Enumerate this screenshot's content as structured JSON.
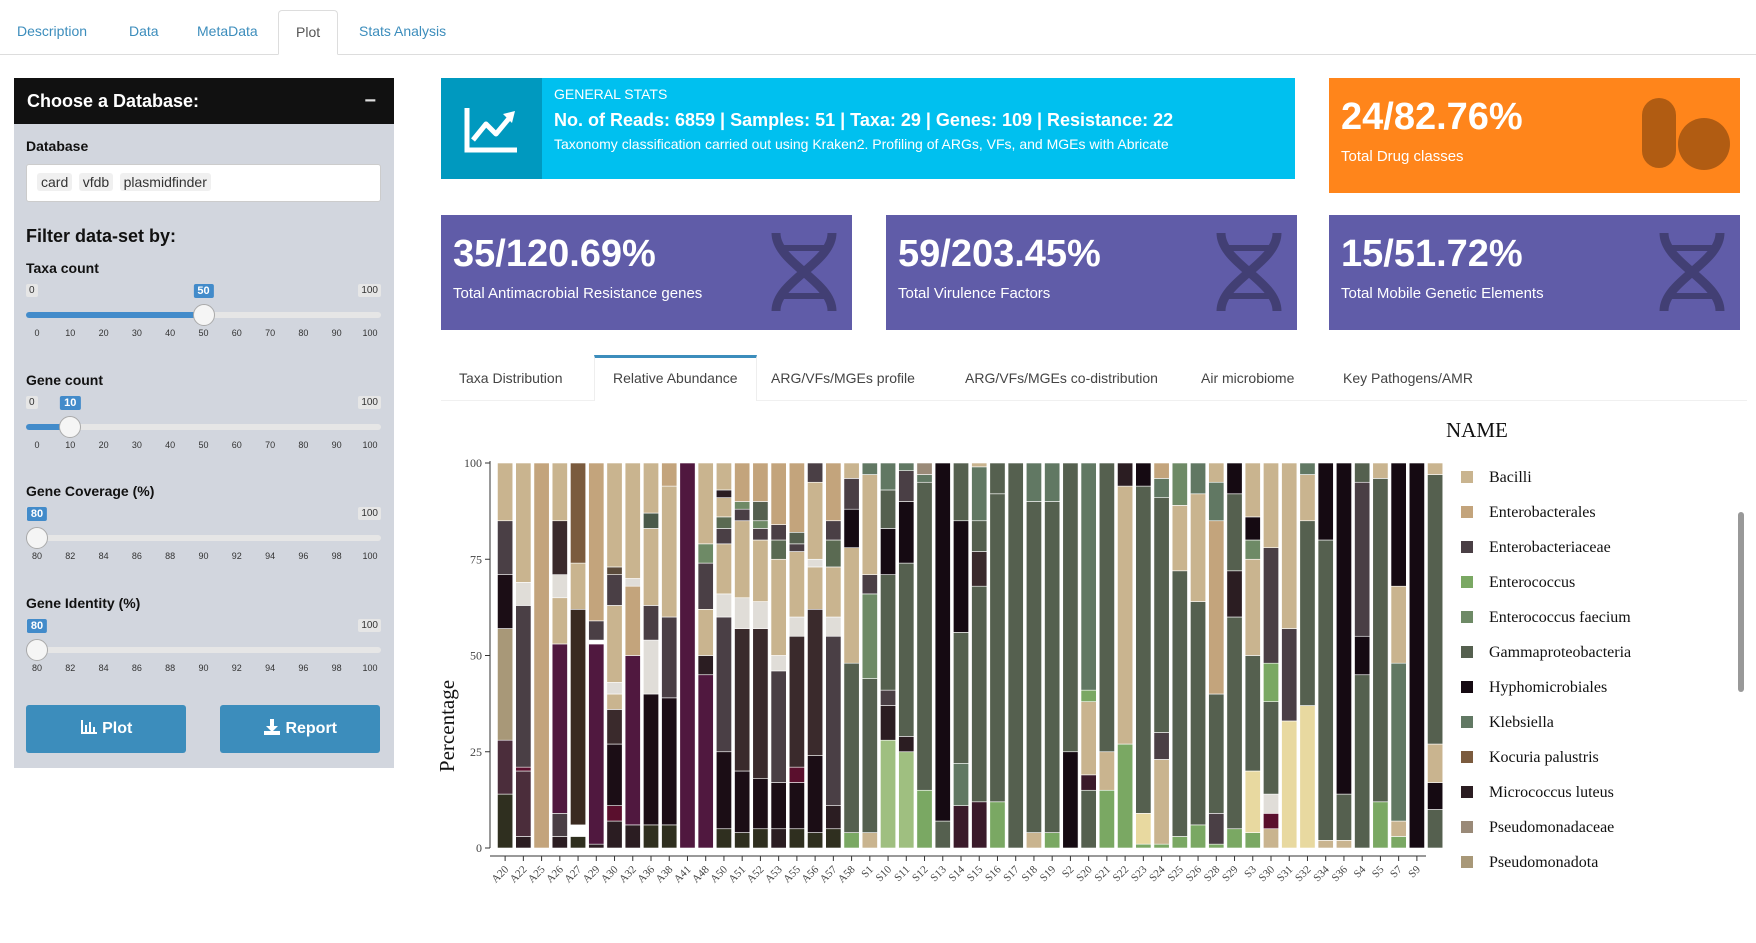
{
  "tabs": [
    "Description",
    "Data",
    "MetaData",
    "Plot",
    "Stats Analysis"
  ],
  "active_tab": "Plot",
  "sidebar": {
    "title": "Choose a Database:",
    "minimize": "−",
    "db_label": "Database",
    "db_chips": [
      "card",
      "vfdb",
      "plasmidfinder"
    ],
    "filter_title": "Filter data-set by:",
    "sliders": [
      {
        "label": "Taxa count",
        "min": "0",
        "max": "100",
        "value": "50",
        "fraction": 0.5,
        "ticks": [
          "0",
          "10",
          "20",
          "30",
          "40",
          "50",
          "60",
          "70",
          "80",
          "90",
          "100"
        ]
      },
      {
        "label": "Gene count",
        "min": "0",
        "max": "100",
        "value": "10",
        "fraction": 0.1,
        "ticks": [
          "0",
          "10",
          "20",
          "30",
          "40",
          "50",
          "60",
          "70",
          "80",
          "90",
          "100"
        ]
      },
      {
        "label": "Gene Coverage (%)",
        "min": "80",
        "max": "100",
        "value": "80",
        "fraction": 0.0,
        "ticks": [
          "80",
          "82",
          "84",
          "86",
          "88",
          "90",
          "92",
          "94",
          "96",
          "98",
          "100"
        ]
      },
      {
        "label": "Gene Identity (%)",
        "min": "80",
        "max": "100",
        "value": "80",
        "fraction": 0.0,
        "ticks": [
          "80",
          "82",
          "84",
          "86",
          "88",
          "90",
          "92",
          "94",
          "96",
          "98",
          "100"
        ]
      }
    ],
    "plot_button": "Plot",
    "report_button": "Report"
  },
  "general_stats": {
    "label": "GENERAL STATS",
    "headline": "No. of Reads: 6859 | Samples: 51 | Taxa: 29 | Genes: 109 | Resistance: 22",
    "note": "Taxonomy classification carried out using Kraken2. Profiling of ARGs, VFs, and MGEs with Abricate"
  },
  "drug": {
    "value": "24/82.76%",
    "caption": "Total Drug classes"
  },
  "value_boxes": [
    {
      "value": "35/120.69%",
      "caption": "Total Antimacrobial Resistance genes"
    },
    {
      "value": "59/203.45%",
      "caption": "Total Virulence Factors"
    },
    {
      "value": "15/51.72%",
      "caption": "Total Mobile Genetic Elements"
    }
  ],
  "content_tabs": [
    "Taxa Distribution",
    "Relative Abundance",
    "ARG/VFs/MGEs profile",
    "ARG/VFs/MGEs co-distribution",
    "Air microbiome",
    "Key Pathogens/AMR"
  ],
  "active_content_tab": "Relative Abundance",
  "colors": {
    "accent": "#3c8dbc",
    "info": "#00c0ef",
    "orange": "#ff851b",
    "purple": "#605ca8"
  },
  "chart_data": {
    "type": "bar",
    "stacked": true,
    "ylabel": "Percentage",
    "ylim": [
      0,
      100
    ],
    "yticks": [
      0,
      25,
      50,
      75,
      100
    ],
    "legend_title": "NAME",
    "legend_position": "right",
    "categories": [
      "A20",
      "A22",
      "A25",
      "A26",
      "A27",
      "A29",
      "A30",
      "A32",
      "A36",
      "A38",
      "A41",
      "A48",
      "A50",
      "A51",
      "A52",
      "A53",
      "A55",
      "A56",
      "A57",
      "A58",
      "S1",
      "S10",
      "S11",
      "S12",
      "S13",
      "S14",
      "S15",
      "S16",
      "S17",
      "S18",
      "S19",
      "S2",
      "S20",
      "S21",
      "S22",
      "S23",
      "S24",
      "S25",
      "S26",
      "S28",
      "S29",
      "S3",
      "S30",
      "S31",
      "S32",
      "S34",
      "S36",
      "S4",
      "S5",
      "S7",
      "S9"
    ],
    "series": [
      {
        "name": "Bacilli",
        "color": "#c9b48f"
      },
      {
        "name": "Enterobacterales",
        "color": "#c3a47c"
      },
      {
        "name": "Enterobacteriaceae",
        "color": "#4a3f45"
      },
      {
        "name": "Enterococcus",
        "color": "#7aa863"
      },
      {
        "name": "Enterococcus faecium",
        "color": "#6e8a66"
      },
      {
        "name": "Gammaproteobacteria",
        "color": "#55604f"
      },
      {
        "name": "Hyphomicrobiales",
        "color": "#150a12"
      },
      {
        "name": "Klebsiella",
        "color": "#617863"
      },
      {
        "name": "Kocuria palustris",
        "color": "#7b5b3e"
      },
      {
        "name": "Micrococcus luteus",
        "color": "#2b1d22"
      },
      {
        "name": "Pseudomonadaceae",
        "color": "#9a8a78"
      },
      {
        "name": "Pseudomonadota",
        "color": "#a89878"
      }
    ],
    "stacks": [
      [
        [
          "#2f2f1f",
          14
        ],
        [
          "#4b2d3b",
          14
        ],
        [
          "#a89878",
          29
        ],
        [
          "#1b0d15",
          14
        ],
        [
          "#4a3f45",
          14
        ],
        [
          "#c9b48f",
          15
        ]
      ],
      [
        [
          "#2b1d22",
          3
        ],
        [
          "#4b2d3b",
          17
        ],
        [
          "#5a0f2d",
          1
        ],
        [
          "#4a3f45",
          42
        ],
        [
          "#e0ddd8",
          6
        ],
        [
          "#c9b48f",
          31
        ]
      ],
      [
        [
          "#c3a47c",
          100
        ]
      ],
      [
        [
          "#2b1d22",
          3
        ],
        [
          "#4a3f45",
          6
        ],
        [
          "#50183f",
          44
        ],
        [
          "#c9b48f",
          12
        ],
        [
          "#e0ddd8",
          6
        ],
        [
          "#3a2a2c",
          14
        ],
        [
          "#c9b48f",
          15
        ]
      ],
      [
        [
          "#2f2f1f",
          3
        ],
        [
          "#ffffff",
          3
        ],
        [
          "#3a2a20",
          56
        ],
        [
          "#c9b48f",
          12
        ],
        [
          "#7b5b3e",
          26
        ]
      ],
      [
        [
          "#2b1d22",
          1
        ],
        [
          "#50183f",
          52
        ],
        [
          "#ffffff",
          1
        ],
        [
          "#4a3f45",
          5
        ],
        [
          "#c3a47c",
          41
        ]
      ],
      [
        [
          "#2b1d22",
          7
        ],
        [
          "#5a0f2d",
          4
        ],
        [
          "#1b0d15",
          16
        ],
        [
          "#3a2a2c",
          9
        ],
        [
          "#c9b48f",
          4
        ],
        [
          "#e0ddd8",
          3
        ],
        [
          "#c9b48f",
          20
        ],
        [
          "#4a3f45",
          8
        ],
        [
          "#5a4a3a",
          2
        ],
        [
          "#c9b48f",
          27
        ]
      ],
      [
        [
          "#2b1d22",
          6
        ],
        [
          "#50183f",
          44
        ],
        [
          "#c3a47c",
          18
        ],
        [
          "#e0ddd8",
          2
        ],
        [
          "#c9b48f",
          30
        ]
      ],
      [
        [
          "#2f2f1f",
          6
        ],
        [
          "#1b0d15",
          34
        ],
        [
          "#e0ddd8",
          14
        ],
        [
          "#4a3f45",
          9
        ],
        [
          "#c9b48f",
          20
        ],
        [
          "#4a5a4a",
          4
        ],
        [
          "#c9b48f",
          13
        ]
      ],
      [
        [
          "#2f2f1f",
          6
        ],
        [
          "#1b0d15",
          33
        ],
        [
          "#4a3f45",
          21
        ],
        [
          "#c9b48f",
          34
        ],
        [
          "#c3a47c",
          6
        ]
      ],
      [
        [
          "#50183f",
          100
        ]
      ],
      [
        [
          "#50183f",
          45
        ],
        [
          "#2b1d22",
          5
        ],
        [
          "#c9b48f",
          12
        ],
        [
          "#4a3f45",
          12
        ],
        [
          "#6e8a66",
          5
        ],
        [
          "#c9b48f",
          21
        ]
      ],
      [
        [
          "#2f2f1f",
          5
        ],
        [
          "#1b0d15",
          20
        ],
        [
          "#4a3f45",
          35
        ],
        [
          "#e0ddd8",
          6
        ],
        [
          "#c9b48f",
          13
        ],
        [
          "#4a3f45",
          4
        ],
        [
          "#5a6a52",
          3
        ],
        [
          "#c9b48f",
          5
        ],
        [
          "#2b1d22",
          2
        ],
        [
          "#c9b48f",
          7
        ]
      ],
      [
        [
          "#2f2f1f",
          4
        ],
        [
          "#1b0d15",
          16
        ],
        [
          "#3a2a2c",
          37
        ],
        [
          "#e0ddd8",
          8
        ],
        [
          "#c9b48f",
          20
        ],
        [
          "#4a3f45",
          3
        ],
        [
          "#6e8a66",
          2
        ],
        [
          "#c3a47c",
          10
        ]
      ],
      [
        [
          "#2f2f1f",
          5
        ],
        [
          "#1b0d15",
          13
        ],
        [
          "#3a2a2c",
          39
        ],
        [
          "#e0ddd8",
          7
        ],
        [
          "#c9b48f",
          16
        ],
        [
          "#4a3f45",
          3
        ],
        [
          "#6e8a66",
          2
        ],
        [
          "#55604f",
          5
        ],
        [
          "#c3a47c",
          10
        ]
      ],
      [
        [
          "#2b1d22",
          5
        ],
        [
          "#1b0d15",
          12
        ],
        [
          "#4a3f45",
          29
        ],
        [
          "#e0ddd8",
          4
        ],
        [
          "#c9b48f",
          25
        ],
        [
          "#5a6a52",
          5
        ],
        [
          "#4a3f45",
          4
        ],
        [
          "#c3a47c",
          16
        ]
      ],
      [
        [
          "#2f2f1f",
          5
        ],
        [
          "#1b0d15",
          12
        ],
        [
          "#5a0f2d",
          4
        ],
        [
          "#3a2a2c",
          34
        ],
        [
          "#e0ddd8",
          5
        ],
        [
          "#c9b48f",
          17
        ],
        [
          "#4a3f45",
          2
        ],
        [
          "#55604f",
          3
        ],
        [
          "#c3a47c",
          18
        ]
      ],
      [
        [
          "#2f2f1f",
          4
        ],
        [
          "#1b0d15",
          20
        ],
        [
          "#3a2a2c",
          38
        ],
        [
          "#c9b48f",
          11
        ],
        [
          "#e0ddd8",
          2
        ],
        [
          "#c9b48f",
          20
        ],
        [
          "#4a3f45",
          5
        ]
      ],
      [
        [
          "#2f2f1f",
          5
        ],
        [
          "#2b1d22",
          6
        ],
        [
          "#4a3f45",
          44
        ],
        [
          "#e0ddd8",
          5
        ],
        [
          "#c9b48f",
          13
        ],
        [
          "#5a6a52",
          7
        ],
        [
          "#4a3f45",
          5
        ],
        [
          "#c3a47c",
          15
        ]
      ],
      [
        [
          "#7aa863",
          4
        ],
        [
          "#55604f",
          44
        ],
        [
          "#c9b48f",
          30
        ],
        [
          "#150a12",
          10
        ],
        [
          "#4a3f45",
          8
        ],
        [
          "#c9b48f",
          4
        ]
      ],
      [
        [
          "#c9b48f",
          4
        ],
        [
          "#55604f",
          40
        ],
        [
          "#6e8a66",
          22
        ],
        [
          "#4a3f45",
          5
        ],
        [
          "#c9b48f",
          26
        ],
        [
          "#617863",
          3
        ]
      ],
      [
        [
          "#9fbf80",
          28
        ],
        [
          "#2b1d22",
          9
        ],
        [
          "#4a3f45",
          4
        ],
        [
          "#55604f",
          30
        ],
        [
          "#150a12",
          12
        ],
        [
          "#55604f",
          10
        ],
        [
          "#617863",
          7
        ]
      ],
      [
        [
          "#9fbf80",
          25
        ],
        [
          "#2b1d22",
          4
        ],
        [
          "#55604f",
          45
        ],
        [
          "#150a12",
          16
        ],
        [
          "#4a3f45",
          8
        ],
        [
          "#617863",
          2
        ]
      ],
      [
        [
          "#7aa863",
          15
        ],
        [
          "#55604f",
          80
        ],
        [
          "#617863",
          2
        ],
        [
          "#9a8a78",
          3
        ]
      ],
      [
        [
          "#55604f",
          7
        ],
        [
          "#150a12",
          93
        ]
      ],
      [
        [
          "#3a1a2a",
          11
        ],
        [
          "#617863",
          11
        ],
        [
          "#55604f",
          34
        ],
        [
          "#150a12",
          29
        ],
        [
          "#55604f",
          15
        ]
      ],
      [
        [
          "#3a1a2a",
          12
        ],
        [
          "#55604f",
          56
        ],
        [
          "#3a2a2c",
          9
        ],
        [
          "#55604f",
          8
        ],
        [
          "#617863",
          14
        ],
        [
          "#c9b48f",
          1
        ]
      ],
      [
        [
          "#7aa863",
          12
        ],
        [
          "#55604f",
          80
        ],
        [
          "#55604f",
          8
        ]
      ],
      [
        [
          "#55604f",
          100
        ]
      ],
      [
        [
          "#c9b48f",
          4
        ],
        [
          "#55604f",
          86
        ],
        [
          "#617863",
          10
        ]
      ],
      [
        [
          "#7aa863",
          4
        ],
        [
          "#55604f",
          86
        ],
        [
          "#617863",
          10
        ]
      ],
      [
        [
          "#150a12",
          25
        ],
        [
          "#55604f",
          75
        ]
      ],
      [
        [
          "#55604f",
          15
        ],
        [
          "#3a1a2a",
          4
        ],
        [
          "#c9b48f",
          19
        ],
        [
          "#7aa863",
          3
        ],
        [
          "#617863",
          59
        ]
      ],
      [
        [
          "#7aa863",
          15
        ],
        [
          "#c9b48f",
          10
        ],
        [
          "#55604f",
          75
        ]
      ],
      [
        [
          "#7aa863",
          27
        ],
        [
          "#c9b48f",
          67
        ],
        [
          "#2b1d22",
          6
        ]
      ],
      [
        [
          "#7aa863",
          1
        ],
        [
          "#e8d9a0",
          8
        ],
        [
          "#55604f",
          85
        ],
        [
          "#150a12",
          6
        ]
      ],
      [
        [
          "#7aa863",
          1
        ],
        [
          "#c9b48f",
          22
        ],
        [
          "#4a3f45",
          7
        ],
        [
          "#55604f",
          61
        ],
        [
          "#617863",
          5
        ],
        [
          "#c3a47c",
          4
        ]
      ],
      [
        [
          "#7aa863",
          3
        ],
        [
          "#55604f",
          69
        ],
        [
          "#c9b48f",
          17
        ],
        [
          "#6e8a66",
          11
        ]
      ],
      [
        [
          "#7aa863",
          6
        ],
        [
          "#55604f",
          58
        ],
        [
          "#c9b48f",
          28
        ],
        [
          "#617863",
          8
        ]
      ],
      [
        [
          "#7aa863",
          1
        ],
        [
          "#4a3f45",
          8
        ],
        [
          "#55604f",
          31
        ],
        [
          "#c3a47c",
          45
        ],
        [
          "#617863",
          10
        ],
        [
          "#c9b48f",
          5
        ]
      ],
      [
        [
          "#7aa863",
          5
        ],
        [
          "#55604f",
          55
        ],
        [
          "#2b1d22",
          12
        ],
        [
          "#55604f",
          20
        ],
        [
          "#150a12",
          8
        ]
      ],
      [
        [
          "#7aa863",
          4
        ],
        [
          "#e8d9a0",
          16
        ],
        [
          "#55604f",
          30
        ],
        [
          "#c9b48f",
          25
        ],
        [
          "#6e8a66",
          5
        ],
        [
          "#150a12",
          6
        ],
        [
          "#c9b48f",
          14
        ]
      ],
      [
        [
          "#c9b48f",
          5
        ],
        [
          "#5a0f2d",
          4
        ],
        [
          "#e0ddd8",
          5
        ],
        [
          "#55604f",
          24
        ],
        [
          "#7aa863",
          10
        ],
        [
          "#4a3f45",
          30
        ],
        [
          "#c9b48f",
          22
        ]
      ],
      [
        [
          "#e8d9a0",
          33
        ],
        [
          "#4a3f45",
          24
        ],
        [
          "#c9b48f",
          43
        ]
      ],
      [
        [
          "#e8d9a0",
          37
        ],
        [
          "#55604f",
          48
        ],
        [
          "#c9b48f",
          12
        ],
        [
          "#617863",
          3
        ]
      ],
      [
        [
          "#c9b48f",
          2
        ],
        [
          "#55604f",
          78
        ],
        [
          "#150a12",
          20
        ]
      ],
      [
        [
          "#c9b48f",
          2
        ],
        [
          "#55604f",
          12
        ],
        [
          "#150a12",
          86
        ]
      ],
      [
        [
          "#55604f",
          45
        ],
        [
          "#150a12",
          10
        ],
        [
          "#4a3f45",
          40
        ],
        [
          "#55604f",
          5
        ]
      ],
      [
        [
          "#7aa863",
          12
        ],
        [
          "#55604f",
          84
        ],
        [
          "#c9b48f",
          4
        ]
      ],
      [
        [
          "#7aa863",
          3
        ],
        [
          "#c9b48f",
          4
        ],
        [
          "#617863",
          41
        ],
        [
          "#c9b48f",
          20
        ],
        [
          "#150a12",
          32
        ]
      ],
      [
        [
          "#150a12",
          100
        ]
      ],
      [
        [
          "#55604f",
          10
        ],
        [
          "#150a12",
          7
        ],
        [
          "#c9b48f",
          10
        ],
        [
          "#55604f",
          70
        ],
        [
          "#c9b48f",
          3
        ]
      ]
    ]
  }
}
